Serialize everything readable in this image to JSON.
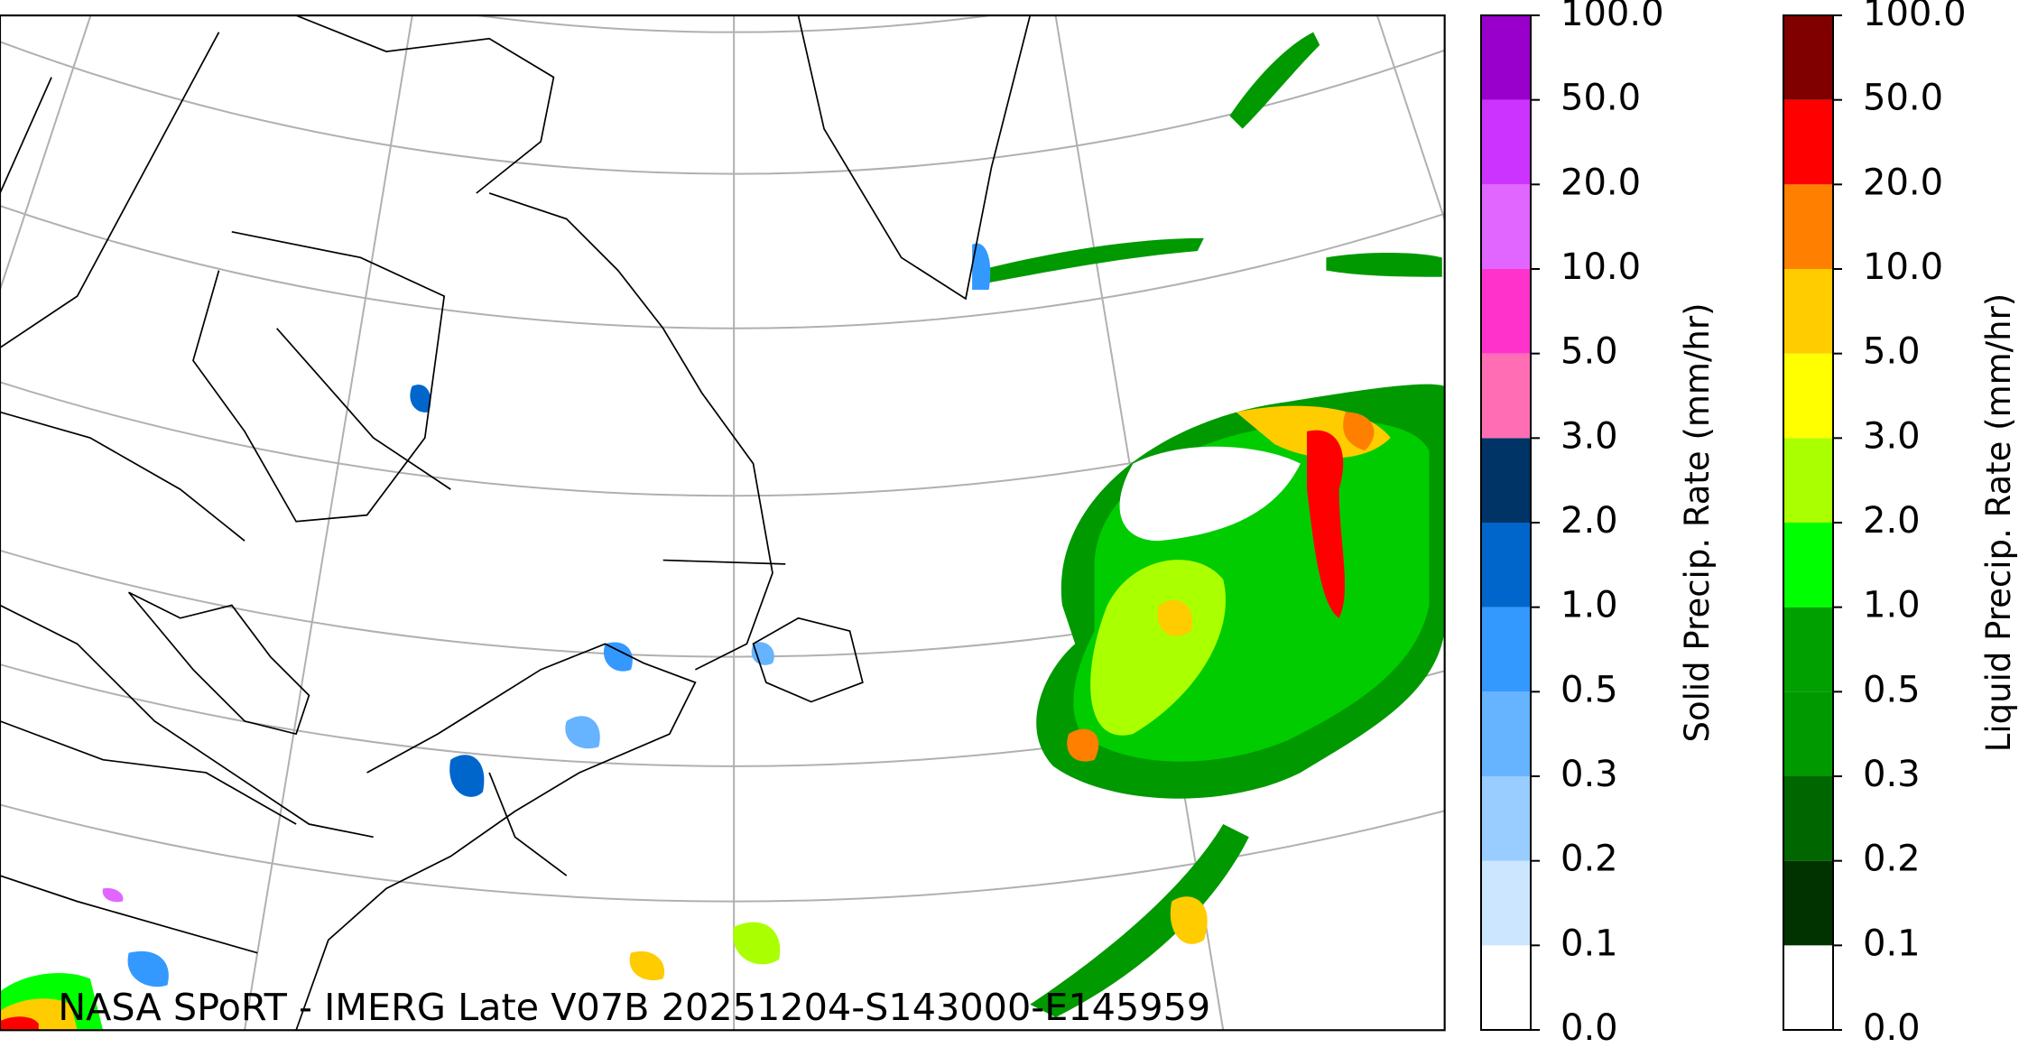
{
  "map": {
    "footer": "NASA SPoRT - IMERG Late V07B 20251204-S143000-E145959"
  },
  "colorbars": [
    {
      "title": "Solid Precip. Rate (mm/hr)",
      "ticks": [
        {
          "value": 0,
          "label": "0.0"
        },
        {
          "value": 0.1,
          "label": "0.1"
        },
        {
          "value": 0.2,
          "label": "0.2"
        },
        {
          "value": 0.3,
          "label": "0.3"
        },
        {
          "value": 0.5,
          "label": "0.5"
        },
        {
          "value": 1,
          "label": "1.0"
        },
        {
          "value": 2,
          "label": "2.0"
        },
        {
          "value": 3,
          "label": "3.0"
        },
        {
          "value": 5,
          "label": "5.0"
        },
        {
          "value": 10,
          "label": "10.0"
        },
        {
          "value": 20,
          "label": "20.0"
        },
        {
          "value": 50,
          "label": "50.0"
        },
        {
          "value": 100,
          "label": "100.0"
        }
      ],
      "colors": [
        "#ffffff",
        "#cce6ff",
        "#99ccff",
        "#66b3ff",
        "#3399ff",
        "#0066cc",
        "#003366",
        "#ff6eb4",
        "#ff33cc",
        "#e066ff",
        "#cc33ff",
        "#9900cc"
      ]
    },
    {
      "title": "Liquid Precip. Rate (mm/hr)",
      "ticks": [
        {
          "value": 0,
          "label": "0.0"
        },
        {
          "value": 0.1,
          "label": "0.1"
        },
        {
          "value": 0.2,
          "label": "0.2"
        },
        {
          "value": 0.3,
          "label": "0.3"
        },
        {
          "value": 0.5,
          "label": "0.5"
        },
        {
          "value": 1,
          "label": "1.0"
        },
        {
          "value": 2,
          "label": "2.0"
        },
        {
          "value": 3,
          "label": "3.0"
        },
        {
          "value": 5,
          "label": "5.0"
        },
        {
          "value": 10,
          "label": "10.0"
        },
        {
          "value": 20,
          "label": "20.0"
        },
        {
          "value": 50,
          "label": "50.0"
        },
        {
          "value": 100,
          "label": "100.0"
        }
      ],
      "colors": [
        "#ffffff",
        "#003300",
        "#006600",
        "#009900",
        "#00a000",
        "#00ff00",
        "#aaff00",
        "#ffff00",
        "#ffcc00",
        "#ff8000",
        "#ff0000",
        "#800000",
        "#400000"
      ]
    }
  ]
}
